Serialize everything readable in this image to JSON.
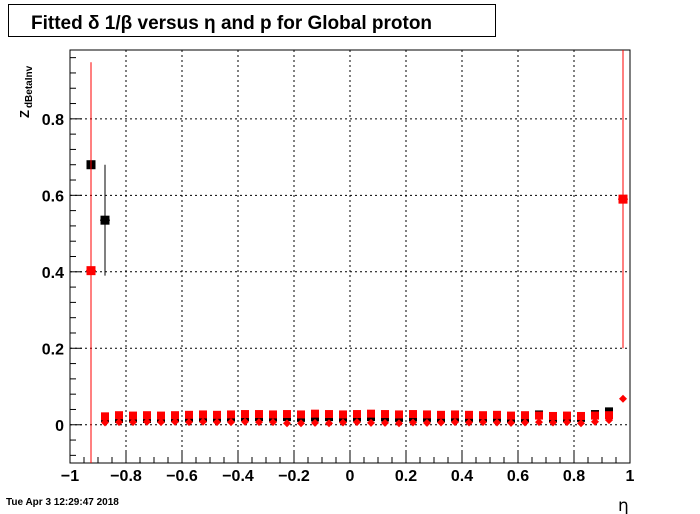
{
  "title": "Fitted δ 1/β versus η and p for Global proton",
  "timestamp": "Tue Apr  3 12:29:47 2018",
  "colors": {
    "series_black": "#000000",
    "series_red": "#ff0000",
    "grid": "#000000"
  },
  "chart_data": {
    "type": "scatter",
    "xlabel": "η",
    "ylabel": "Z_dBetaInv",
    "ylabel_main": "Z",
    "ylabel_sub": "dBetaInv",
    "xlim": [
      -1,
      1
    ],
    "ylim": [
      -0.1,
      0.98
    ],
    "xticks": [
      -1,
      -0.8,
      -0.6,
      -0.4,
      -0.2,
      0,
      0.2,
      0.4,
      0.6,
      0.8,
      1
    ],
    "xtick_labels": [
      "−1",
      "−0.8",
      "−0.6",
      "−0.4",
      "−0.2",
      "0",
      "0.2",
      "0.4",
      "0.6",
      "0.8",
      "1"
    ],
    "yticks": [
      0,
      0.2,
      0.4,
      0.6,
      0.8
    ],
    "ytick_labels": [
      "0",
      "0.2",
      "0.4",
      "0.6",
      "0.8"
    ],
    "grid": true,
    "series": [
      {
        "color": "#000000",
        "marker": "square",
        "points": [
          {
            "x": -0.925,
            "y": 0.68,
            "err": 0
          },
          {
            "x": -0.875,
            "y": 0.535,
            "err": 0.145
          }
        ]
      },
      {
        "color": "#000000",
        "marker": "square-small",
        "points": [
          {
            "x": -0.875,
            "y": 0.018
          },
          {
            "x": -0.825,
            "y": 0.015
          },
          {
            "x": -0.775,
            "y": 0.016
          },
          {
            "x": -0.725,
            "y": 0.015
          },
          {
            "x": -0.675,
            "y": 0.016
          },
          {
            "x": -0.625,
            "y": 0.017
          },
          {
            "x": -0.575,
            "y": 0.018
          },
          {
            "x": -0.525,
            "y": 0.017
          },
          {
            "x": -0.475,
            "y": 0.018
          },
          {
            "x": -0.425,
            "y": 0.019
          },
          {
            "x": -0.375,
            "y": 0.02
          },
          {
            "x": -0.325,
            "y": 0.02
          },
          {
            "x": -0.275,
            "y": 0.019
          },
          {
            "x": -0.225,
            "y": 0.02
          },
          {
            "x": -0.175,
            "y": 0.018
          },
          {
            "x": -0.125,
            "y": 0.019
          },
          {
            "x": -0.075,
            "y": 0.02
          },
          {
            "x": -0.025,
            "y": 0.018
          },
          {
            "x": 0.025,
            "y": 0.019
          },
          {
            "x": 0.075,
            "y": 0.02
          },
          {
            "x": 0.125,
            "y": 0.019
          },
          {
            "x": 0.175,
            "y": 0.018
          },
          {
            "x": 0.225,
            "y": 0.019
          },
          {
            "x": 0.275,
            "y": 0.018
          },
          {
            "x": 0.325,
            "y": 0.017
          },
          {
            "x": 0.375,
            "y": 0.019
          },
          {
            "x": 0.425,
            "y": 0.018
          },
          {
            "x": 0.475,
            "y": 0.017
          },
          {
            "x": 0.525,
            "y": 0.018
          },
          {
            "x": 0.575,
            "y": 0.016
          },
          {
            "x": 0.625,
            "y": 0.017
          },
          {
            "x": 0.675,
            "y": 0.027
          },
          {
            "x": 0.725,
            "y": 0.016
          },
          {
            "x": 0.775,
            "y": 0.017
          },
          {
            "x": 0.825,
            "y": 0.018
          },
          {
            "x": 0.875,
            "y": 0.028
          },
          {
            "x": 0.925,
            "y": 0.035
          }
        ]
      },
      {
        "color": "#ff0000",
        "marker": "square",
        "points": [
          {
            "x": -0.925,
            "y": 0.403,
            "err": 0.545
          },
          {
            "x": 0.975,
            "y": 0.59,
            "err": 0.39
          }
        ]
      },
      {
        "color": "#ff0000",
        "marker": "square-small",
        "points": [
          {
            "x": -0.875,
            "y": 0.022
          },
          {
            "x": -0.825,
            "y": 0.025
          },
          {
            "x": -0.775,
            "y": 0.024
          },
          {
            "x": -0.725,
            "y": 0.025
          },
          {
            "x": -0.675,
            "y": 0.024
          },
          {
            "x": -0.625,
            "y": 0.025
          },
          {
            "x": -0.575,
            "y": 0.026
          },
          {
            "x": -0.525,
            "y": 0.027
          },
          {
            "x": -0.475,
            "y": 0.026
          },
          {
            "x": -0.425,
            "y": 0.027
          },
          {
            "x": -0.375,
            "y": 0.028
          },
          {
            "x": -0.325,
            "y": 0.028
          },
          {
            "x": -0.275,
            "y": 0.027
          },
          {
            "x": -0.225,
            "y": 0.028
          },
          {
            "x": -0.175,
            "y": 0.027
          },
          {
            "x": -0.125,
            "y": 0.029
          },
          {
            "x": -0.075,
            "y": 0.028
          },
          {
            "x": -0.025,
            "y": 0.027
          },
          {
            "x": 0.025,
            "y": 0.028
          },
          {
            "x": 0.075,
            "y": 0.029
          },
          {
            "x": 0.125,
            "y": 0.028
          },
          {
            "x": 0.175,
            "y": 0.027
          },
          {
            "x": 0.225,
            "y": 0.028
          },
          {
            "x": 0.275,
            "y": 0.027
          },
          {
            "x": 0.325,
            "y": 0.026
          },
          {
            "x": 0.375,
            "y": 0.027
          },
          {
            "x": 0.425,
            "y": 0.026
          },
          {
            "x": 0.475,
            "y": 0.025
          },
          {
            "x": 0.525,
            "y": 0.026
          },
          {
            "x": 0.575,
            "y": 0.024
          },
          {
            "x": 0.625,
            "y": 0.025
          },
          {
            "x": 0.675,
            "y": 0.024
          },
          {
            "x": 0.725,
            "y": 0.023
          },
          {
            "x": 0.775,
            "y": 0.024
          },
          {
            "x": 0.825,
            "y": 0.023
          },
          {
            "x": 0.875,
            "y": 0.024
          },
          {
            "x": 0.925,
            "y": 0.025
          }
        ]
      },
      {
        "color": "#ff0000",
        "marker": "diamond",
        "points": [
          {
            "x": -0.875,
            "y": 0.006
          },
          {
            "x": -0.825,
            "y": 0.007
          },
          {
            "x": -0.775,
            "y": 0.007
          },
          {
            "x": -0.725,
            "y": 0.008
          },
          {
            "x": -0.675,
            "y": 0.007
          },
          {
            "x": -0.625,
            "y": 0.008
          },
          {
            "x": -0.575,
            "y": 0.007
          },
          {
            "x": -0.525,
            "y": 0.008
          },
          {
            "x": -0.475,
            "y": 0.007
          },
          {
            "x": -0.425,
            "y": 0.007
          },
          {
            "x": -0.375,
            "y": 0.008
          },
          {
            "x": -0.325,
            "y": 0.007
          },
          {
            "x": -0.275,
            "y": 0.007
          },
          {
            "x": -0.225,
            "y": 0.004
          },
          {
            "x": -0.175,
            "y": 0.004
          },
          {
            "x": -0.125,
            "y": 0.005
          },
          {
            "x": -0.075,
            "y": 0.004
          },
          {
            "x": -0.025,
            "y": 0.006
          },
          {
            "x": 0.025,
            "y": 0.007
          },
          {
            "x": 0.075,
            "y": 0.005
          },
          {
            "x": 0.125,
            "y": 0.005
          },
          {
            "x": 0.175,
            "y": 0.004
          },
          {
            "x": 0.225,
            "y": 0.006
          },
          {
            "x": 0.275,
            "y": 0.005
          },
          {
            "x": 0.325,
            "y": 0.006
          },
          {
            "x": 0.375,
            "y": 0.007
          },
          {
            "x": 0.425,
            "y": 0.006
          },
          {
            "x": 0.475,
            "y": 0.007
          },
          {
            "x": 0.525,
            "y": 0.006
          },
          {
            "x": 0.575,
            "y": 0.005
          },
          {
            "x": 0.625,
            "y": 0.006
          },
          {
            "x": 0.675,
            "y": 0.007
          },
          {
            "x": 0.725,
            "y": 0.006
          },
          {
            "x": 0.775,
            "y": 0.007
          },
          {
            "x": 0.825,
            "y": 0.004
          },
          {
            "x": 0.875,
            "y": 0.008
          },
          {
            "x": 0.925,
            "y": 0.012
          },
          {
            "x": 0.975,
            "y": 0.068
          }
        ]
      }
    ]
  }
}
